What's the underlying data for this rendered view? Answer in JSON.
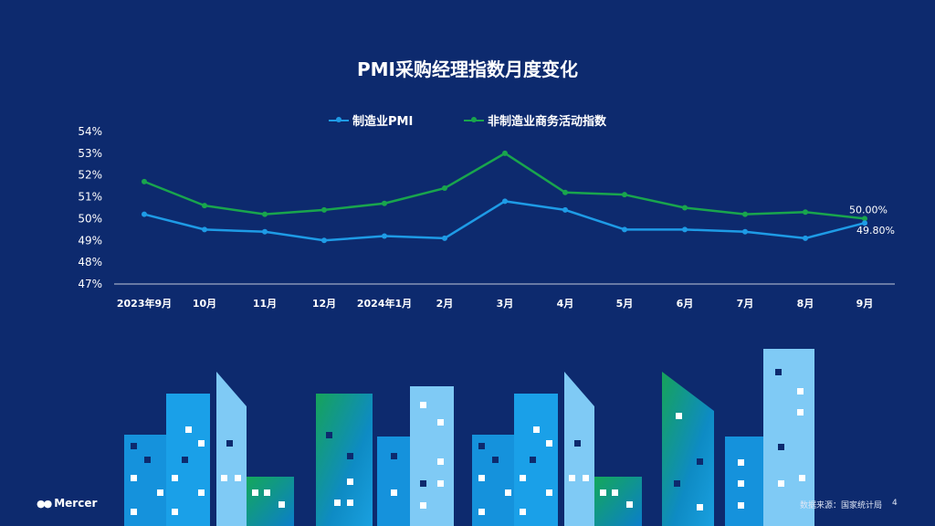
{
  "slide": {
    "title": "PMI采购经理指数月度变化",
    "source": "数据来源：国家统计局",
    "page_number": "4",
    "logo_text": "Mercer"
  },
  "colors": {
    "background": "#0d2a6e",
    "manufacturing": "#1e9be6",
    "non_manufacturing": "#19a54d",
    "axis": "#ffffff"
  },
  "chart_data": {
    "type": "line",
    "title": "PMI采购经理指数月度变化",
    "categories": [
      "2023年9月",
      "10月",
      "11月",
      "12月",
      "2024年1月",
      "2月",
      "3月",
      "4月",
      "5月",
      "6月",
      "7月",
      "8月",
      "9月"
    ],
    "series": [
      {
        "name": "制造业PMI",
        "values": [
          50.2,
          49.5,
          49.4,
          49.0,
          49.2,
          49.1,
          50.8,
          50.4,
          49.5,
          49.5,
          49.4,
          49.1,
          49.8
        ],
        "end_label": "49.80%"
      },
      {
        "name": "非制造业商务活动指数",
        "values": [
          51.7,
          50.6,
          50.2,
          50.4,
          50.7,
          51.4,
          53.0,
          51.2,
          51.1,
          50.5,
          50.2,
          50.3,
          50.0
        ],
        "end_label": "50.00%"
      }
    ],
    "y_ticks": [
      "54%",
      "53%",
      "52%",
      "51%",
      "50%",
      "49%",
      "48%",
      "47%"
    ],
    "ylim": [
      47,
      54
    ],
    "legend_position": "top-center",
    "grid": false
  }
}
